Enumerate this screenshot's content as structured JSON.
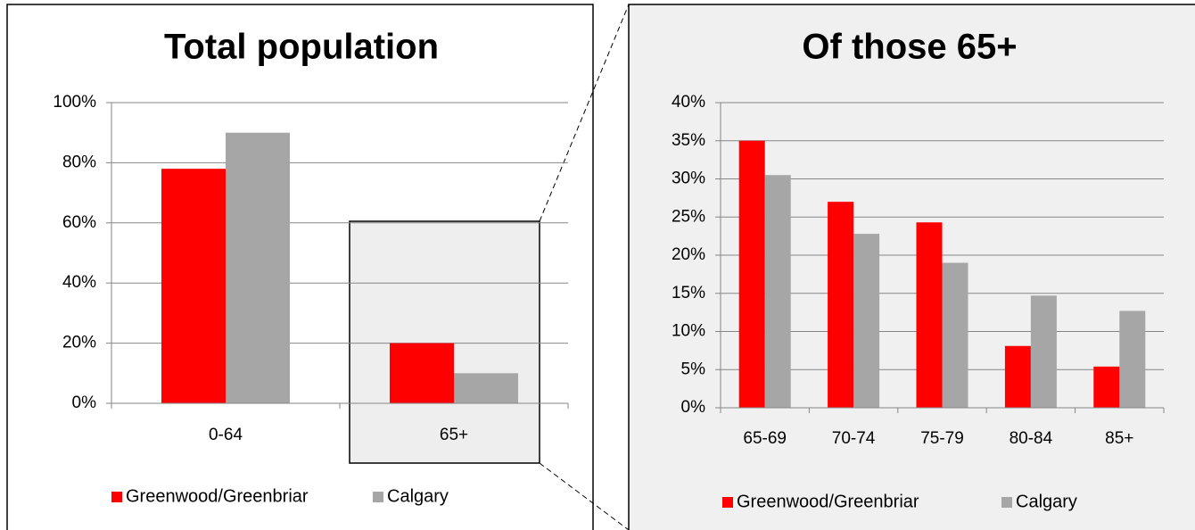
{
  "chart_data": [
    {
      "type": "bar",
      "title": "Total population",
      "categories": [
        "0-64",
        "65+"
      ],
      "series": [
        {
          "name": "Greenwood/Greenbriar",
          "color": "#ff0000",
          "values": [
            78,
            20
          ]
        },
        {
          "name": "Calgary",
          "color": "#a6a6a6",
          "values": [
            90,
            10
          ]
        }
      ],
      "ylim": [
        0,
        100
      ],
      "yticks": [
        {
          "value": 0,
          "label": "0%"
        },
        {
          "value": 20,
          "label": "20%"
        },
        {
          "value": 40,
          "label": "40%"
        },
        {
          "value": 60,
          "label": "60%"
        },
        {
          "value": 80,
          "label": "80%"
        },
        {
          "value": 100,
          "label": "100%"
        }
      ],
      "grid": true,
      "legend": "bottom"
    },
    {
      "type": "bar",
      "title": "Of those 65+",
      "categories": [
        "65-69",
        "70-74",
        "75-79",
        "80-84",
        "85+"
      ],
      "series": [
        {
          "name": "Greenwood/Greenbriar",
          "color": "#ff0000",
          "values": [
            35,
            27,
            24.3,
            8.1,
            5.4
          ]
        },
        {
          "name": "Calgary",
          "color": "#a6a6a6",
          "values": [
            30.5,
            22.8,
            19,
            14.7,
            12.7
          ]
        }
      ],
      "ylim": [
        0,
        40
      ],
      "yticks": [
        {
          "value": 0,
          "label": "0%"
        },
        {
          "value": 5,
          "label": "5%"
        },
        {
          "value": 10,
          "label": "10%"
        },
        {
          "value": 15,
          "label": "15%"
        },
        {
          "value": 20,
          "label": "20%"
        },
        {
          "value": 25,
          "label": "25%"
        },
        {
          "value": 30,
          "label": "30%"
        },
        {
          "value": 35,
          "label": "35%"
        },
        {
          "value": 40,
          "label": "40%"
        }
      ],
      "grid": true,
      "legend": "bottom"
    }
  ]
}
